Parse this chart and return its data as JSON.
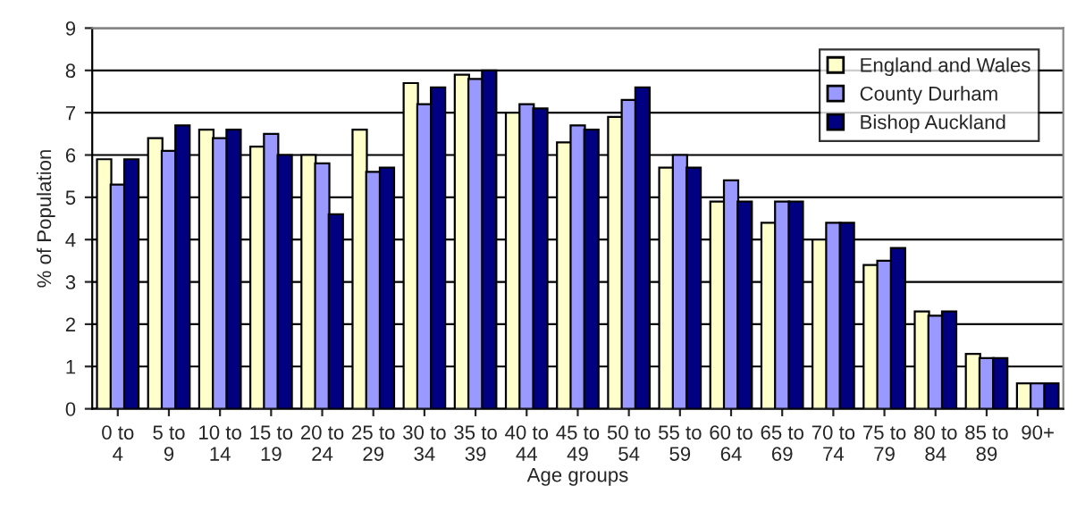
{
  "chart_data": {
    "type": "bar",
    "xlabel": "Age groups",
    "ylabel": "% of Population",
    "categories": [
      "0 to\n4",
      "5 to\n9",
      "10 to\n14",
      "15 to\n19",
      "20 to\n24",
      "25 to\n29",
      "30 to\n34",
      "35 to\n39",
      "40 to\n44",
      "45 to\n49",
      "50 to\n54",
      "55 to\n59",
      "60 to\n64",
      "65 to\n69",
      "70 to\n74",
      "75 to\n79",
      "80 to\n84",
      "85 to\n89",
      "90+"
    ],
    "series": [
      {
        "name": "England and Wales",
        "color": "#ffffcc",
        "values": [
          5.9,
          6.4,
          6.6,
          6.2,
          6.0,
          6.6,
          7.7,
          7.9,
          7.0,
          6.3,
          6.9,
          5.7,
          4.9,
          4.4,
          4.0,
          3.4,
          2.3,
          1.3,
          0.6
        ]
      },
      {
        "name": "County Durham",
        "color": "#9999ff",
        "values": [
          5.3,
          6.1,
          6.4,
          6.5,
          5.8,
          5.6,
          7.2,
          7.8,
          7.2,
          6.7,
          7.3,
          6.0,
          5.4,
          4.9,
          4.4,
          3.5,
          2.2,
          1.2,
          0.6
        ]
      },
      {
        "name": "Bishop Auckland",
        "color": "#000080",
        "values": [
          5.9,
          6.7,
          6.6,
          6.0,
          4.6,
          5.7,
          7.6,
          8.0,
          7.1,
          6.6,
          7.6,
          5.7,
          4.9,
          4.9,
          4.4,
          3.8,
          2.3,
          1.2,
          0.6
        ]
      }
    ],
    "ylim": [
      0,
      9
    ],
    "yticks": [
      0,
      1,
      2,
      3,
      4,
      5,
      6,
      7,
      8,
      9
    ],
    "grid": "y",
    "legend": "top right"
  }
}
